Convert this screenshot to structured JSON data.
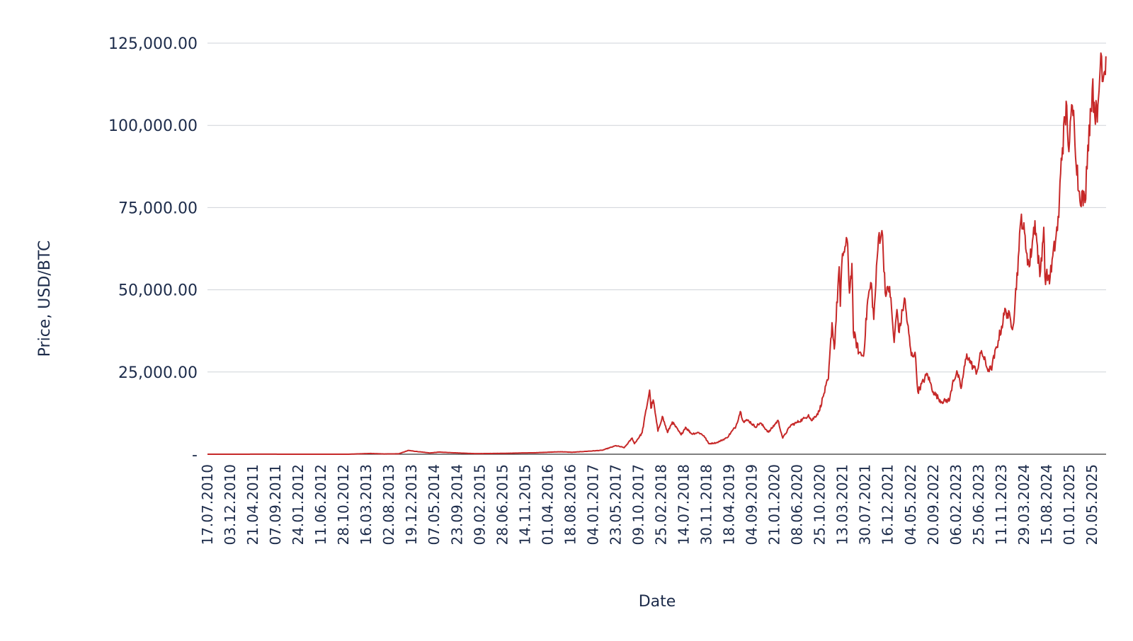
{
  "chart_data": {
    "type": "line",
    "title": "",
    "xlabel": "Date",
    "ylabel": "Price, USD/BTC",
    "ylim": [
      0,
      125000
    ],
    "y_ticks": [
      {
        "value": 0,
        "label": "-"
      },
      {
        "value": 25000,
        "label": "25,000.00"
      },
      {
        "value": 50000,
        "label": "50,000.00"
      },
      {
        "value": 75000,
        "label": "75,000.00"
      },
      {
        "value": 100000,
        "label": "100,000.00"
      },
      {
        "value": 125000,
        "label": "125,000.00"
      }
    ],
    "x_tick_labels": [
      "17.07.2010",
      "03.12.2010",
      "21.04.2011",
      "07.09.2011",
      "24.01.2012",
      "11.06.2012",
      "28.10.2012",
      "16.03.2013",
      "02.08.2013",
      "19.12.2013",
      "07.05.2014",
      "23.09.2014",
      "09.02.2015",
      "28.06.2015",
      "14.11.2015",
      "01.04.2016",
      "18.08.2016",
      "04.01.2017",
      "23.05.2017",
      "09.10.2017",
      "25.02.2018",
      "14.07.2018",
      "30.11.2018",
      "18.04.2019",
      "04.09.2019",
      "21.01.2020",
      "08.06.2020",
      "25.10.2020",
      "13.03.2021",
      "30.07.2021",
      "16.12.2021",
      "04.05.2022",
      "20.09.2022",
      "06.02.2023",
      "25.06.2023",
      "11.11.2023",
      "29.03.2024",
      "15.08.2024",
      "01.01.2025",
      "20.05.2025"
    ],
    "x_range": [
      "2010-07-17",
      "2025-08-15"
    ],
    "grid": true,
    "legend": "none",
    "series": [
      {
        "color": "#c62828",
        "points": [
          [
            "2010-07-17",
            0.05
          ],
          [
            "2011-02-01",
            1
          ],
          [
            "2011-06-08",
            30
          ],
          [
            "2011-11-20",
            2.5
          ],
          [
            "2012-06-01",
            6
          ],
          [
            "2012-12-01",
            13
          ],
          [
            "2013-04-10",
            230
          ],
          [
            "2013-07-01",
            90
          ],
          [
            "2013-10-01",
            130
          ],
          [
            "2013-11-30",
            1150
          ],
          [
            "2014-01-15",
            850
          ],
          [
            "2014-04-10",
            380
          ],
          [
            "2014-06-05",
            650
          ],
          [
            "2014-10-01",
            380
          ],
          [
            "2015-01-14",
            180
          ],
          [
            "2015-07-01",
            260
          ],
          [
            "2015-11-04",
            400
          ],
          [
            "2016-01-01",
            430
          ],
          [
            "2016-06-18",
            750
          ],
          [
            "2016-09-01",
            600
          ],
          [
            "2017-01-01",
            1000
          ],
          [
            "2017-03-01",
            1200
          ],
          [
            "2017-05-25",
            2600
          ],
          [
            "2017-07-15",
            2000
          ],
          [
            "2017-09-01",
            4900
          ],
          [
            "2017-09-15",
            3200
          ],
          [
            "2017-11-01",
            6500
          ],
          [
            "2017-12-17",
            19500
          ],
          [
            "2017-12-25",
            14000
          ],
          [
            "2018-01-08",
            16500
          ],
          [
            "2018-02-06",
            7000
          ],
          [
            "2018-03-05",
            11500
          ],
          [
            "2018-04-06",
            6600
          ],
          [
            "2018-05-05",
            9800
          ],
          [
            "2018-06-28",
            5900
          ],
          [
            "2018-07-25",
            8200
          ],
          [
            "2018-09-01",
            6200
          ],
          [
            "2018-10-15",
            6600
          ],
          [
            "2018-11-15",
            5600
          ],
          [
            "2018-12-15",
            3200
          ],
          [
            "2019-02-01",
            3500
          ],
          [
            "2019-04-05",
            5000
          ],
          [
            "2019-05-30",
            8500
          ],
          [
            "2019-06-26",
            13000
          ],
          [
            "2019-07-15",
            10000
          ],
          [
            "2019-08-15",
            10300
          ],
          [
            "2019-09-25",
            8300
          ],
          [
            "2019-10-26",
            9500
          ],
          [
            "2019-12-17",
            6700
          ],
          [
            "2020-02-12",
            10300
          ],
          [
            "2020-03-12",
            4900
          ],
          [
            "2020-04-30",
            8800
          ],
          [
            "2020-06-01",
            9500
          ],
          [
            "2020-07-27",
            11000
          ],
          [
            "2020-08-17",
            12000
          ],
          [
            "2020-09-05",
            10200
          ],
          [
            "2020-10-21",
            13000
          ],
          [
            "2020-11-20",
            18500
          ],
          [
            "2020-12-17",
            23000
          ],
          [
            "2021-01-08",
            40000
          ],
          [
            "2021-01-22",
            32000
          ],
          [
            "2021-02-21",
            57000
          ],
          [
            "2021-02-28",
            45000
          ],
          [
            "2021-03-13",
            61000
          ],
          [
            "2021-04-14",
            64000
          ],
          [
            "2021-04-25",
            49000
          ],
          [
            "2021-05-10",
            58000
          ],
          [
            "2021-05-19",
            37000
          ],
          [
            "2021-06-22",
            31000
          ],
          [
            "2021-07-20",
            29800
          ],
          [
            "2021-08-15",
            47000
          ],
          [
            "2021-09-06",
            52000
          ],
          [
            "2021-09-21",
            41000
          ],
          [
            "2021-10-20",
            66000
          ],
          [
            "2021-11-10",
            68000
          ],
          [
            "2021-12-04",
            48000
          ],
          [
            "2021-12-27",
            51000
          ],
          [
            "2022-01-24",
            34000
          ],
          [
            "2022-02-10",
            44000
          ],
          [
            "2022-02-24",
            37000
          ],
          [
            "2022-03-28",
            47500
          ],
          [
            "2022-05-09",
            30000
          ],
          [
            "2022-06-01",
            31000
          ],
          [
            "2022-06-18",
            19000
          ],
          [
            "2022-08-15",
            24500
          ],
          [
            "2022-09-20",
            19000
          ],
          [
            "2022-11-09",
            16000
          ],
          [
            "2022-12-30",
            16500
          ],
          [
            "2023-01-20",
            22500
          ],
          [
            "2023-02-16",
            24700
          ],
          [
            "2023-03-10",
            20000
          ],
          [
            "2023-04-14",
            30500
          ],
          [
            "2023-05-10",
            27500
          ],
          [
            "2023-06-15",
            25000
          ],
          [
            "2023-07-13",
            31500
          ],
          [
            "2023-08-18",
            26000
          ],
          [
            "2023-09-10",
            25800
          ],
          [
            "2023-10-24",
            34500
          ],
          [
            "2023-12-08",
            44000
          ],
          [
            "2024-01-23",
            39000
          ],
          [
            "2024-02-28",
            62000
          ],
          [
            "2024-03-14",
            73000
          ],
          [
            "2024-04-17",
            61000
          ],
          [
            "2024-05-01",
            57000
          ],
          [
            "2024-06-05",
            71000
          ],
          [
            "2024-07-05",
            54000
          ],
          [
            "2024-07-29",
            69000
          ],
          [
            "2024-08-05",
            54000
          ],
          [
            "2024-09-06",
            53900
          ],
          [
            "2024-10-29",
            72000
          ],
          [
            "2024-11-13",
            90000
          ],
          [
            "2024-12-17",
            106000
          ],
          [
            "2024-12-30",
            92000
          ],
          [
            "2025-01-20",
            106000
          ],
          [
            "2025-02-01",
            100000
          ],
          [
            "2025-02-28",
            80000
          ],
          [
            "2025-04-08",
            76500
          ],
          [
            "2025-04-25",
            94000
          ],
          [
            "2025-05-22",
            111000
          ],
          [
            "2025-06-22",
            101000
          ],
          [
            "2025-07-14",
            122000
          ],
          [
            "2025-07-31",
            115000
          ],
          [
            "2025-08-14",
            121000
          ]
        ]
      }
    ]
  }
}
